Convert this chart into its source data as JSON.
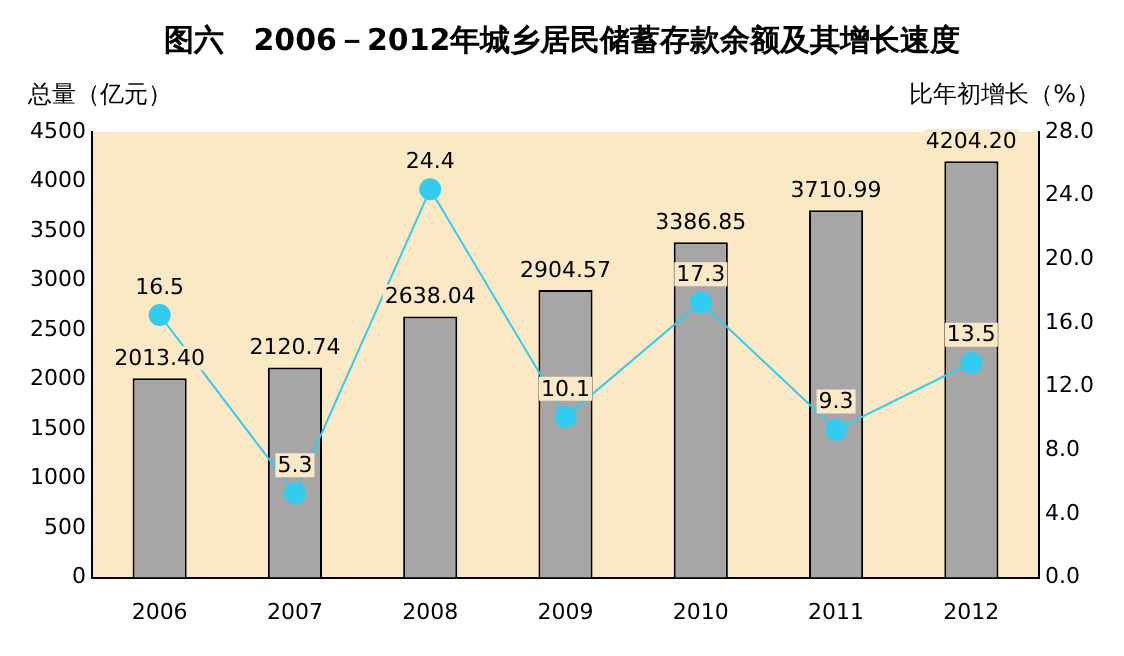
{
  "chart_data": {
    "type": "bar",
    "title": "图六　2006－2012年城乡居民储蓄存款余额及其增长速度",
    "ylabel": "总量（亿元）",
    "y2label": "比年初增长（%）",
    "categories": [
      "2006",
      "2007",
      "2008",
      "2009",
      "2010",
      "2011",
      "2012"
    ],
    "series": [
      {
        "color": "#a6a6a6",
        "values": [
          2013.4,
          2120.74,
          2638.04,
          2904.57,
          3386.85,
          3710.99,
          4204.2
        ],
        "value_labels": [
          "2013.40",
          "2120.74",
          "2638.04",
          "2904.57",
          "3386.85",
          "3710.99",
          "4204.20"
        ]
      },
      {
        "type": "line",
        "axis": "y2",
        "color": "#33ccee",
        "marker": "circle",
        "values": [
          16.5,
          5.3,
          24.4,
          10.1,
          17.3,
          9.3,
          13.5
        ],
        "value_labels": [
          "16.5",
          "5.3",
          "24.4",
          "10.1",
          "17.3",
          "9.3",
          "13.5"
        ]
      }
    ],
    "ylim": [
      0,
      4500
    ],
    "yticks": [
      0,
      500,
      1000,
      1500,
      2000,
      2500,
      3000,
      3500,
      4000,
      4500
    ],
    "y2lim": [
      0,
      28
    ],
    "y2ticks": [
      {
        "value": 0,
        "label": "0.0"
      },
      {
        "value": 4,
        "label": "4.0"
      },
      {
        "value": 8,
        "label": "8.0"
      },
      {
        "value": 12,
        "label": "12.0"
      },
      {
        "value": 16,
        "label": "16.0"
      },
      {
        "value": 20,
        "label": "20.0"
      },
      {
        "value": 24,
        "label": "24.0"
      },
      {
        "value": 28,
        "label": "28.0"
      }
    ],
    "grid": false,
    "legend": false
  }
}
